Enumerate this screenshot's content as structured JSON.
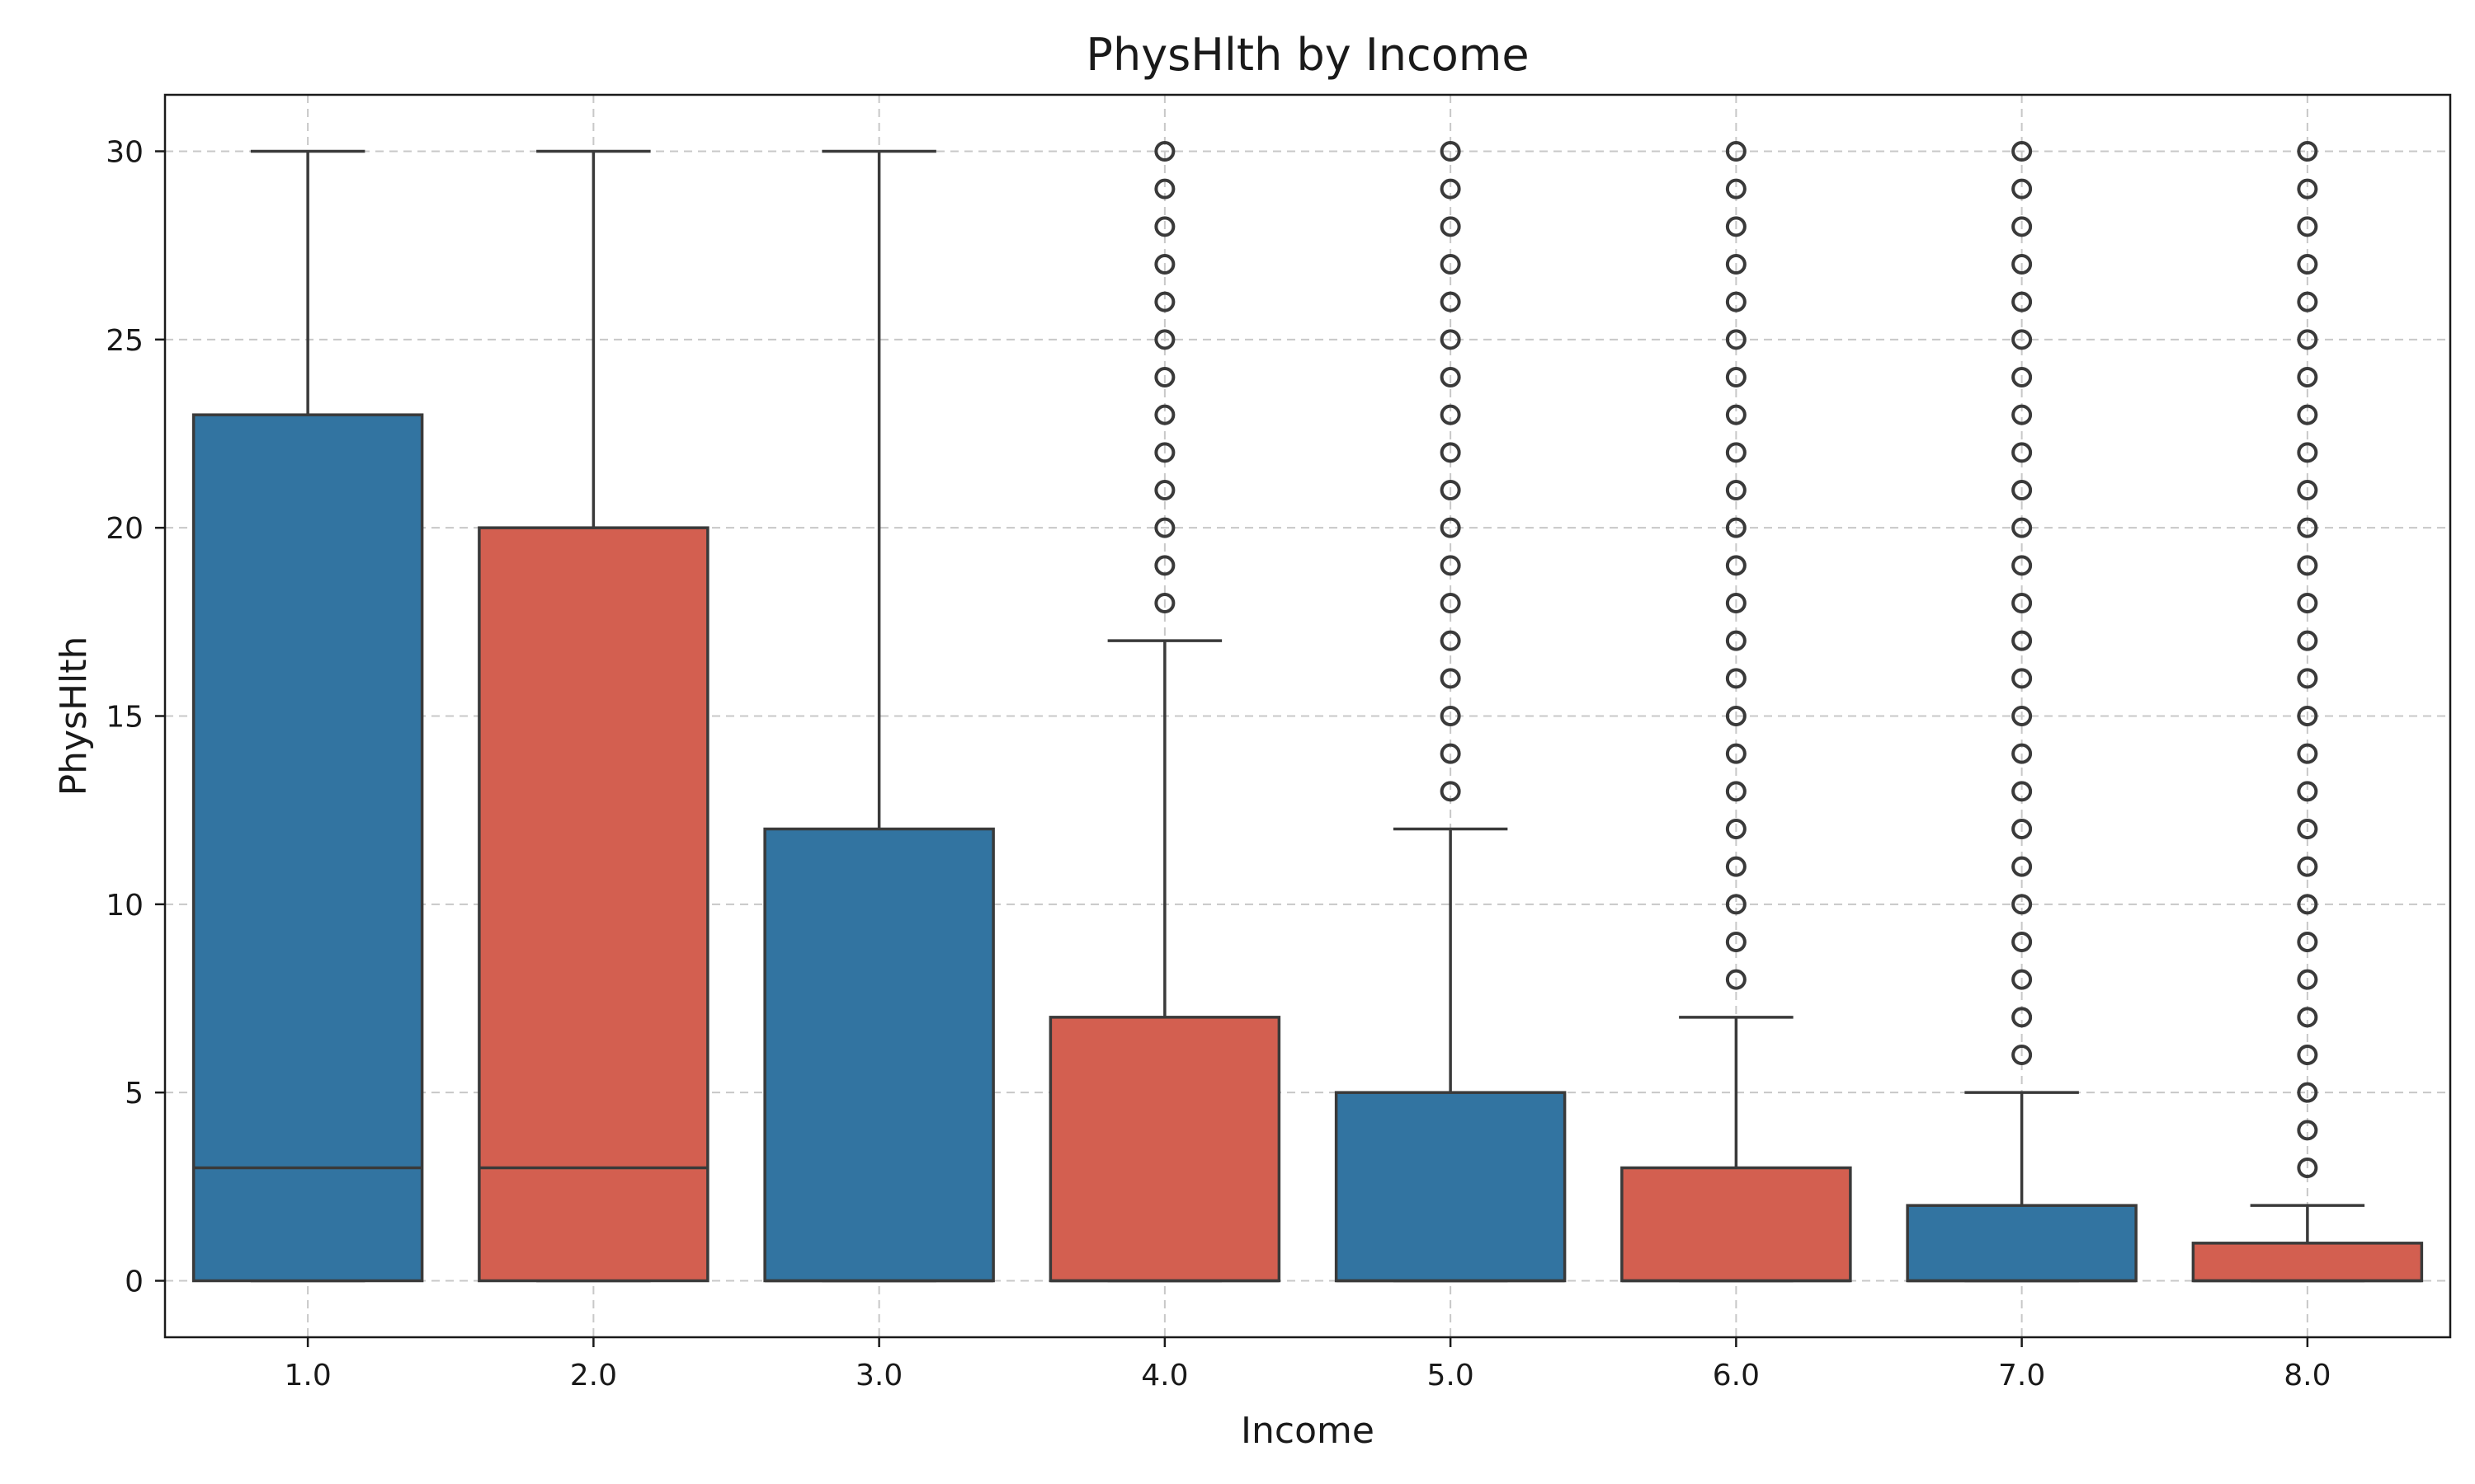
{
  "chart_data": {
    "type": "box",
    "title": "PhysHlth by Income",
    "xlabel": "Income",
    "ylabel": "PhysHlth",
    "categories": [
      "1.0",
      "2.0",
      "3.0",
      "4.0",
      "5.0",
      "6.0",
      "7.0",
      "8.0"
    ],
    "ylim": [
      -1.5,
      31.5
    ],
    "yticks": [
      0,
      5,
      10,
      15,
      20,
      25,
      30
    ],
    "grid": true,
    "colors": [
      "#3274a1",
      "#d35f50",
      "#3274a1",
      "#d35f50",
      "#3274a1",
      "#d35f50",
      "#3274a1",
      "#d35f50"
    ],
    "boxes": [
      {
        "category": "1.0",
        "q1": 0,
        "median": 3,
        "q3": 23,
        "whisker_low": 0,
        "whisker_high": 30,
        "fliers": []
      },
      {
        "category": "2.0",
        "q1": 0,
        "median": 3,
        "q3": 20,
        "whisker_low": 0,
        "whisker_high": 30,
        "fliers": []
      },
      {
        "category": "3.0",
        "q1": 0,
        "median": 0,
        "q3": 12,
        "whisker_low": 0,
        "whisker_high": 30,
        "fliers": []
      },
      {
        "category": "4.0",
        "q1": 0,
        "median": 0,
        "q3": 7,
        "whisker_low": 0,
        "whisker_high": 17,
        "fliers": [
          18,
          19,
          20,
          21,
          22,
          23,
          24,
          25,
          26,
          27,
          28,
          29,
          30
        ]
      },
      {
        "category": "5.0",
        "q1": 0,
        "median": 0,
        "q3": 5,
        "whisker_low": 0,
        "whisker_high": 12,
        "fliers": [
          13,
          14,
          15,
          16,
          17,
          18,
          19,
          20,
          21,
          22,
          23,
          24,
          25,
          26,
          27,
          28,
          29,
          30
        ]
      },
      {
        "category": "6.0",
        "q1": 0,
        "median": 0,
        "q3": 3,
        "whisker_low": 0,
        "whisker_high": 7,
        "fliers": [
          8,
          9,
          10,
          11,
          12,
          13,
          14,
          15,
          16,
          17,
          18,
          19,
          20,
          21,
          22,
          23,
          24,
          25,
          26,
          27,
          28,
          29,
          30
        ]
      },
      {
        "category": "7.0",
        "q1": 0,
        "median": 0,
        "q3": 2,
        "whisker_low": 0,
        "whisker_high": 5,
        "fliers": [
          6,
          7,
          8,
          9,
          10,
          11,
          12,
          13,
          14,
          15,
          16,
          17,
          18,
          19,
          20,
          21,
          22,
          23,
          24,
          25,
          26,
          27,
          28,
          29,
          30
        ]
      },
      {
        "category": "8.0",
        "q1": 0,
        "median": 0,
        "q3": 1,
        "whisker_low": 0,
        "whisker_high": 2,
        "fliers": [
          3,
          4,
          5,
          6,
          7,
          8,
          9,
          10,
          11,
          12,
          13,
          14,
          15,
          16,
          17,
          18,
          19,
          20,
          21,
          22,
          23,
          24,
          25,
          26,
          27,
          28,
          29,
          30
        ]
      }
    ]
  }
}
